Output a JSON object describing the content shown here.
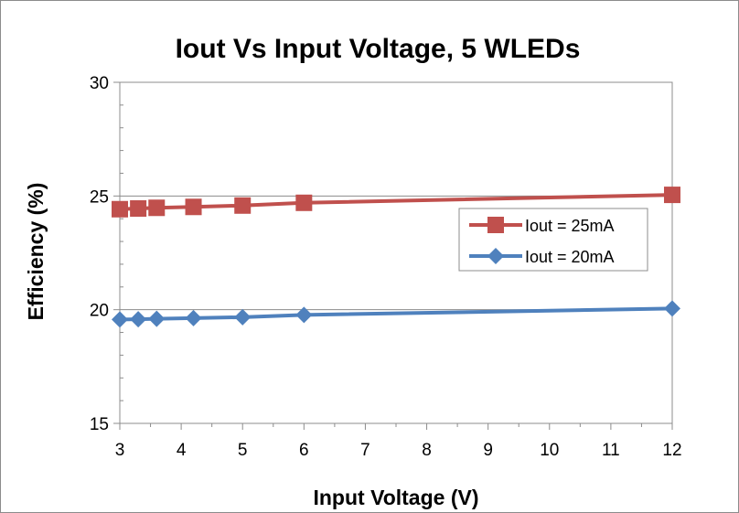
{
  "chart_data": {
    "type": "line",
    "title": "Iout Vs Input Voltage, 5 WLEDs",
    "xlabel": "Input Voltage (V)",
    "ylabel": "Efficiency (%)",
    "xlim": [
      3,
      12
    ],
    "ylim": [
      15,
      30
    ],
    "x_ticks": [
      3,
      4,
      5,
      6,
      7,
      8,
      9,
      10,
      11,
      12
    ],
    "y_ticks": [
      15,
      20,
      25,
      30
    ],
    "grid": "horizontal major gridlines",
    "legend_position": "right",
    "series": [
      {
        "name": "Iout = 25mA",
        "color": "#c0504d",
        "marker": "square",
        "x": [
          3,
          3.3,
          3.6,
          4.2,
          5,
          6,
          12
        ],
        "values": [
          24.42,
          24.45,
          24.48,
          24.52,
          24.58,
          24.7,
          25.05
        ]
      },
      {
        "name": "Iout = 20mA",
        "color": "#4f81bd",
        "marker": "diamond",
        "x": [
          3,
          3.3,
          3.6,
          4.2,
          5,
          6,
          12
        ],
        "values": [
          19.57,
          19.58,
          19.6,
          19.63,
          19.67,
          19.77,
          20.05
        ]
      }
    ]
  }
}
